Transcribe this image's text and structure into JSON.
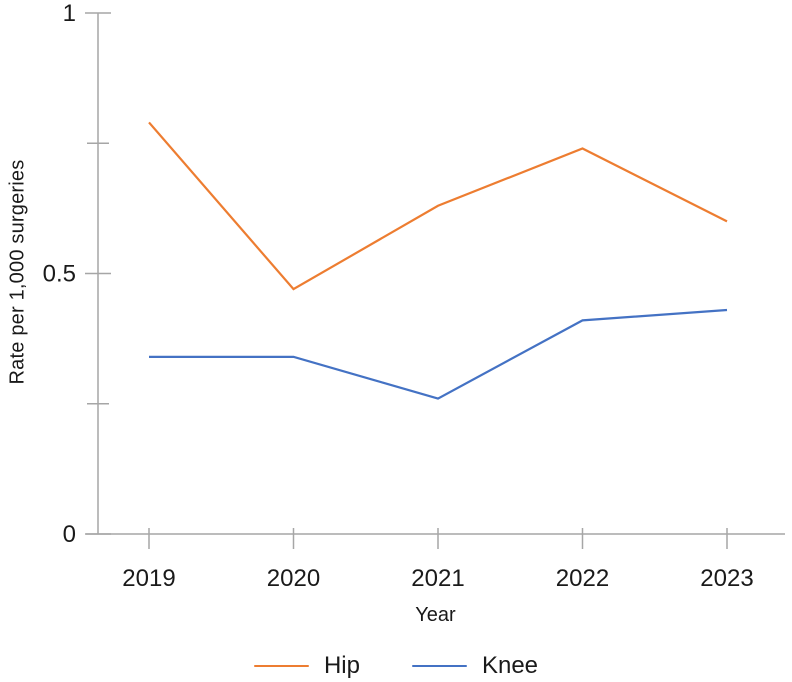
{
  "chart_data": {
    "type": "line",
    "title": "",
    "x": [
      2019,
      2020,
      2021,
      2022,
      2023
    ],
    "series": [
      {
        "name": "Hip",
        "color": "#ED7D31",
        "values": [
          0.79,
          0.47,
          0.63,
          0.74,
          0.6
        ]
      },
      {
        "name": "Knee",
        "color": "#4472C4",
        "values": [
          0.34,
          0.34,
          0.26,
          0.41,
          0.43
        ]
      }
    ],
    "xlabel": "Year",
    "ylabel": "Rate per 1,000 surgeries",
    "ylim": [
      0,
      1
    ],
    "y_ticks": [
      {
        "value": 0,
        "label": "0"
      },
      {
        "value": 0.25,
        "label": ""
      },
      {
        "value": 0.5,
        "label": "0.5"
      },
      {
        "value": 0.75,
        "label": ""
      },
      {
        "value": 1,
        "label": "1"
      }
    ],
    "grid": false,
    "legend_position": "bottom"
  },
  "colors": {
    "axis_line": "#a6a6a6",
    "tick_line": "#a6a6a6",
    "label_text": "#1a1a1a"
  },
  "legend": {
    "items": [
      {
        "label": "Hip",
        "color": "#ED7D31"
      },
      {
        "label": "Knee",
        "color": "#4472C4"
      }
    ]
  }
}
